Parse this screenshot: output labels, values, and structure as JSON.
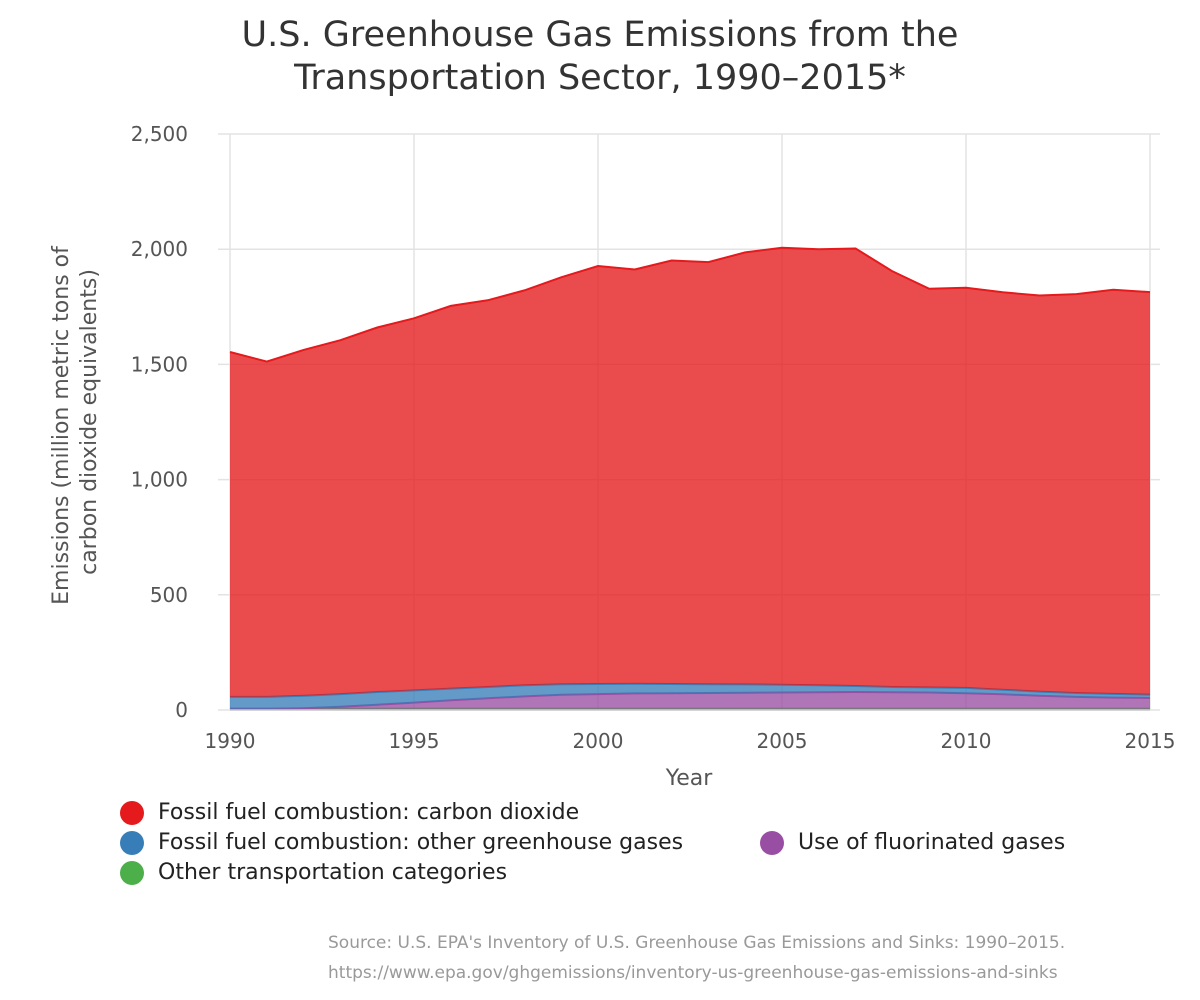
{
  "title_lines": [
    "U.S. Greenhouse Gas Emissions from the",
    "Transportation Sector, 1990–2015*"
  ],
  "source_lines": [
    "Source: U.S. EPA's Inventory of U.S. Greenhouse Gas Emissions and Sinks: 1990–2015.",
    "https://www.epa.gov/ghgemissions/inventory-us-greenhouse-gas-emissions-and-sinks"
  ],
  "chart_data": {
    "type": "area",
    "stacked": true,
    "title": "U.S. Greenhouse Gas Emissions from the Transportation Sector, 1990–2015*",
    "xlabel": "Year",
    "ylabel_lines": [
      "Emissions (million metric tons of",
      "carbon dioxide equivalents)"
    ],
    "xlim": [
      1990,
      2015
    ],
    "ylim": [
      0,
      2500
    ],
    "xticks": [
      1990,
      1995,
      2000,
      2005,
      2010,
      2015
    ],
    "yticks": [
      0,
      500,
      1000,
      1500,
      2000,
      2500
    ],
    "ytick_labels": [
      "0",
      "500",
      "1,000",
      "1,500",
      "2,000",
      "2,500"
    ],
    "grid": true,
    "legend_position": "bottom",
    "x": [
      1990,
      1991,
      1992,
      1993,
      1994,
      1995,
      1996,
      1997,
      1998,
      1999,
      2000,
      2001,
      2002,
      2003,
      2004,
      2005,
      2006,
      2007,
      2008,
      2009,
      2010,
      2011,
      2012,
      2013,
      2014,
      2015
    ],
    "series": [
      {
        "name": "Other transportation categories",
        "color": "#4daf4a",
        "values": [
          5,
          5,
          5,
          5,
          5,
          5,
          5,
          5,
          5,
          5,
          5,
          5,
          5,
          5,
          5,
          5,
          5,
          5,
          5,
          5,
          5,
          5,
          5,
          5,
          5,
          5
        ]
      },
      {
        "name": "Use of fluorinated gases",
        "color": "#984ea3",
        "values": [
          0,
          0,
          3,
          9,
          18,
          27,
          37,
          46,
          54,
          61,
          64,
          67,
          68,
          69,
          70,
          71,
          72,
          73,
          72,
          71,
          68,
          63,
          57,
          52,
          49,
          47
        ]
      },
      {
        "name": "Fossil fuel combustion: other greenhouse gases",
        "color": "#377eb8",
        "values": [
          52,
          52,
          54,
          55,
          55,
          53,
          51,
          49,
          48,
          46,
          44,
          42,
          40,
          38,
          36,
          34,
          30,
          26,
          23,
          22,
          23,
          20,
          18,
          17,
          16,
          15
        ]
      },
      {
        "name": "Fossil fuel combustion: carbon dioxide",
        "color": "#e41a1c",
        "values": [
          1497,
          1455,
          1501,
          1536,
          1582,
          1615,
          1661,
          1678,
          1714,
          1766,
          1814,
          1798,
          1838,
          1832,
          1875,
          1896,
          1893,
          1899,
          1804,
          1730,
          1737,
          1725,
          1719,
          1731,
          1754,
          1747
        ]
      }
    ]
  },
  "legend_items": [
    {
      "label": "Fossil fuel combustion: carbon dioxide",
      "color": "#e41a1c"
    },
    {
      "label": "Fossil fuel combustion: other greenhouse gases",
      "color": "#377eb8"
    },
    {
      "label": "Other transportation categories",
      "color": "#4daf4a"
    },
    {
      "label": "Use of fluorinated gases",
      "color": "#984ea3"
    }
  ]
}
